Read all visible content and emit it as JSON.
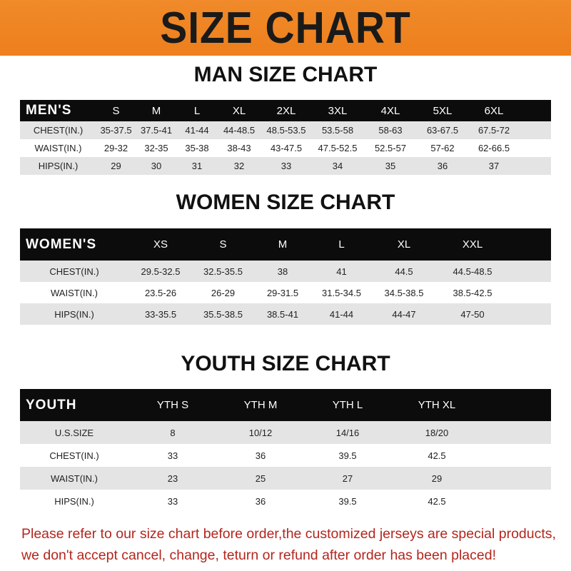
{
  "banner": "SIZE CHART",
  "men": {
    "title": "MAN SIZE CHART",
    "header": "MEN'S",
    "sizes": [
      "S",
      "M",
      "L",
      "XL",
      "2XL",
      "3XL",
      "4XL",
      "5XL",
      "6XL"
    ],
    "rows": [
      {
        "label": "CHEST(IN.)",
        "values": [
          "35-37.5",
          "37.5-41",
          "41-44",
          "44-48.5",
          "48.5-53.5",
          "53.5-58",
          "58-63",
          "63-67.5",
          "67.5-72"
        ]
      },
      {
        "label": "WAIST(IN.)",
        "values": [
          "29-32",
          "32-35",
          "35-38",
          "38-43",
          "43-47.5",
          "47.5-52.5",
          "52.5-57",
          "57-62",
          "62-66.5"
        ]
      },
      {
        "label": "HIPS(IN.)",
        "values": [
          "29",
          "30",
          "31",
          "32",
          "33",
          "34",
          "35",
          "36",
          "37"
        ]
      }
    ]
  },
  "women": {
    "title": "WOMEN SIZE CHART",
    "header": "WOMEN'S",
    "sizes": [
      "XS",
      "S",
      "M",
      "L",
      "XL",
      "XXL"
    ],
    "rows": [
      {
        "label": "CHEST(IN.)",
        "values": [
          "29.5-32.5",
          "32.5-35.5",
          "38",
          "41",
          "44.5",
          "44.5-48.5"
        ]
      },
      {
        "label": "WAIST(IN.)",
        "values": [
          "23.5-26",
          "26-29",
          "29-31.5",
          "31.5-34.5",
          "34.5-38.5",
          "38.5-42.5"
        ]
      },
      {
        "label": "HIPS(IN.)",
        "values": [
          "33-35.5",
          "35.5-38.5",
          "38.5-41",
          "41-44",
          "44-47",
          "47-50"
        ]
      }
    ]
  },
  "youth": {
    "title": "YOUTH SIZE CHART",
    "header": "YOUTH",
    "sizes": [
      "YTH S",
      "YTH M",
      "YTH L",
      "YTH XL"
    ],
    "rows": [
      {
        "label": "U.S.SIZE",
        "values": [
          "8",
          "10/12",
          "14/16",
          "18/20"
        ]
      },
      {
        "label": "CHEST(IN.)",
        "values": [
          "33",
          "36",
          "39.5",
          "42.5"
        ]
      },
      {
        "label": "WAIST(IN.)",
        "values": [
          "23",
          "25",
          "27",
          "29"
        ]
      },
      {
        "label": "HIPS(IN.)",
        "values": [
          "33",
          "36",
          "39.5",
          "42.5"
        ]
      }
    ]
  },
  "notice": [
    "Please refer to our size chart before order,the customized jerseys are special products,",
    "we don't accept cancel, change, teturn or refund after order has been placed!"
  ],
  "colors": {
    "banner": "#ee7f1c",
    "header_row": "#0c0c0c",
    "stripe": "#e4e4e4",
    "notice": "#b3261e"
  }
}
